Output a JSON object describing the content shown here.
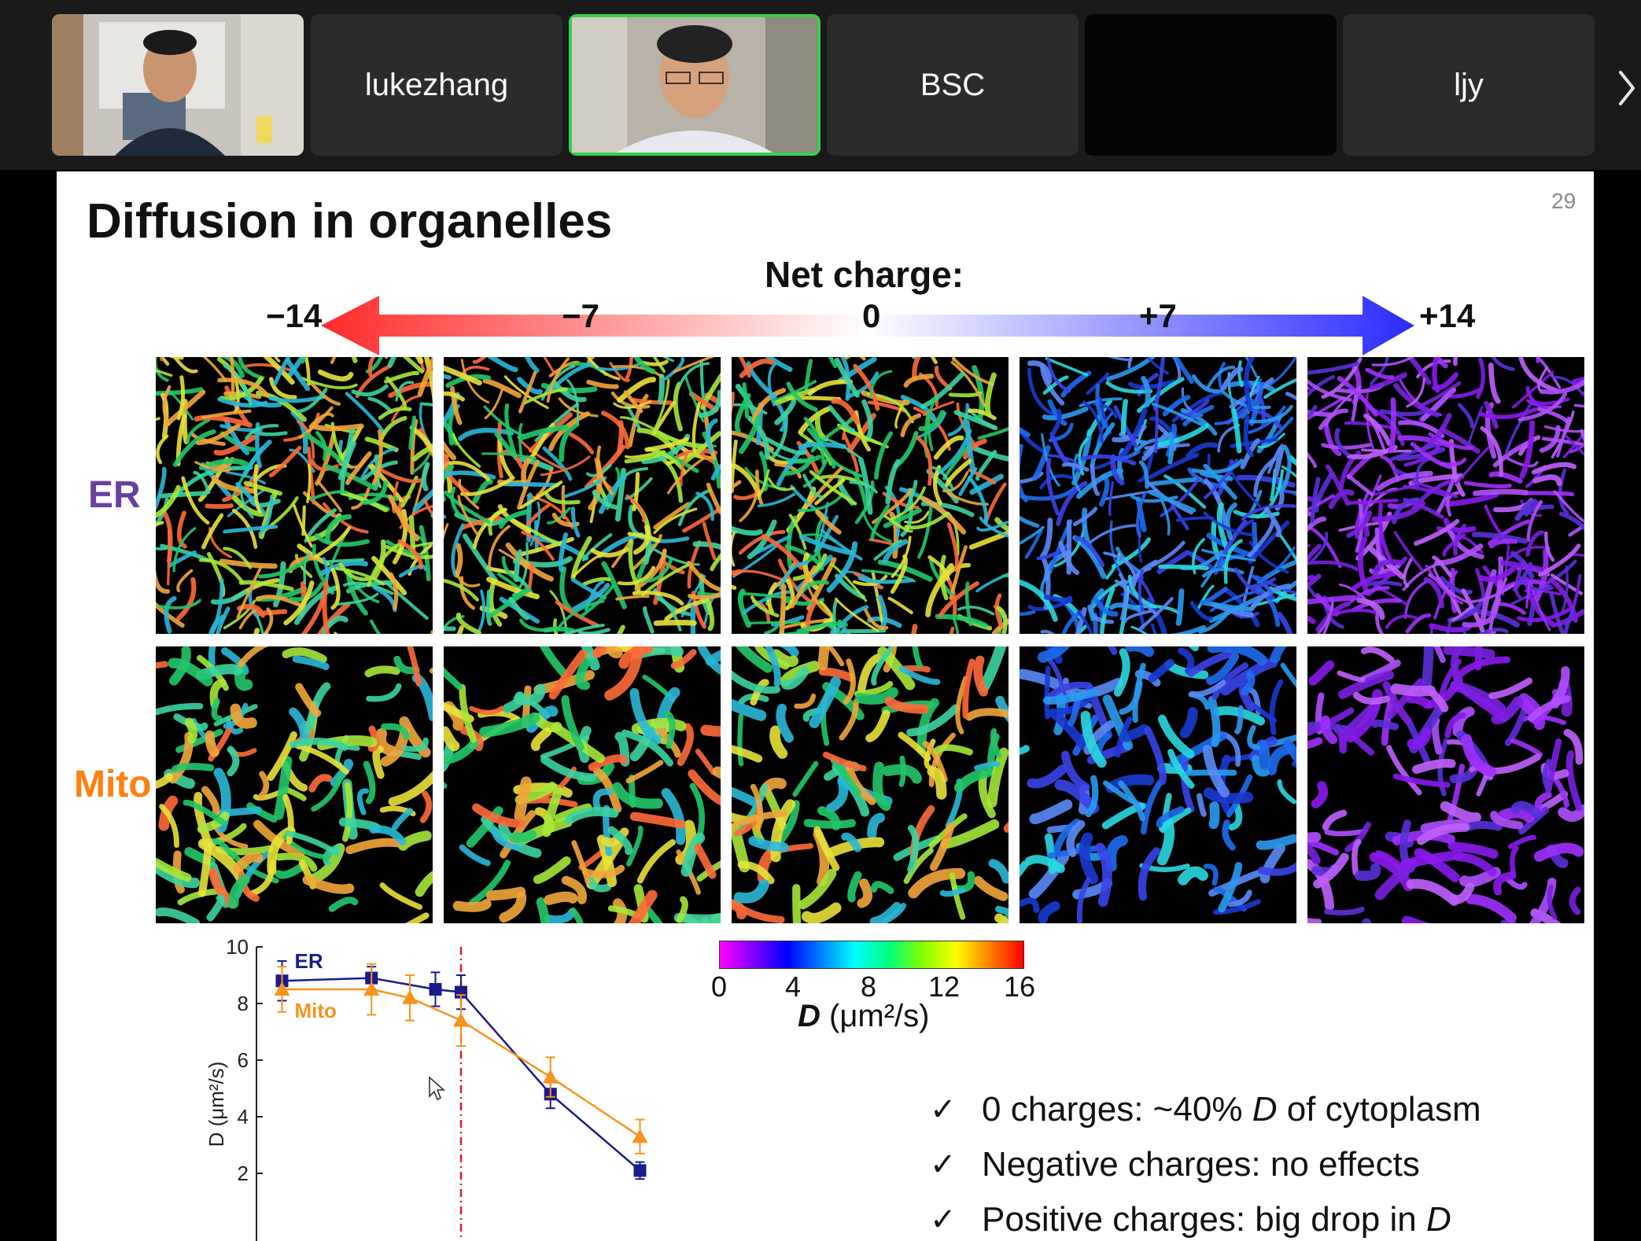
{
  "participants": [
    {
      "name": "",
      "video": true
    },
    {
      "name": "lukezhang",
      "video": false
    },
    {
      "name": "",
      "video": true,
      "active_speaker": true
    },
    {
      "name": "BSC",
      "video": false
    },
    {
      "name": "",
      "video": false
    },
    {
      "name": "ljy",
      "video": false
    }
  ],
  "slide": {
    "title": "Diffusion in organelles",
    "page_number": "29",
    "net_charge_label": "Net charge:",
    "charge_ticks": [
      "−14",
      "−7",
      "0",
      "+7",
      "+14"
    ],
    "row_labels": {
      "er": "ER",
      "mito": "Mito"
    },
    "colors": {
      "er_label": "#6b3fa0",
      "mito_label": "#ff7f0e",
      "er_series": "#1a1a8c",
      "mito_series": "#f7931e",
      "arrow_neg": "#ff2a2a",
      "arrow_pos": "#2a2aff",
      "active_border": "#35d04a"
    },
    "colorbar": {
      "ticks": [
        "0",
        "4",
        "8",
        "12",
        "16"
      ],
      "title_symbol": "D",
      "title_unit": " (μm²/s)"
    },
    "bullets": [
      {
        "check": "✓",
        "pre": "0 charges: ~40% ",
        "em": "D",
        "post": " of cytoplasm"
      },
      {
        "check": "✓",
        "pre": "Negative charges: no effects",
        "em": "",
        "post": ""
      },
      {
        "check": "✓",
        "pre": "Positive charges: big drop in ",
        "em": "D",
        "post": ""
      }
    ]
  },
  "chart_data": {
    "type": "line",
    "ylabel": "D (μm²/s)",
    "ylim": [
      0,
      10
    ],
    "yticks": [
      "2",
      "4",
      "6",
      "8",
      "10"
    ],
    "x": [
      -14,
      -7,
      -4,
      -2,
      0,
      7,
      14
    ],
    "series": [
      {
        "name": "ER",
        "values": [
          8.8,
          8.9,
          null,
          8.5,
          8.4,
          4.8,
          2.1
        ],
        "err": [
          0.7,
          0.4,
          null,
          0.6,
          0.6,
          0.5,
          0.3
        ]
      },
      {
        "name": "Mito",
        "values": [
          8.5,
          8.5,
          8.2,
          null,
          7.4,
          5.4,
          3.3
        ],
        "err": [
          0.8,
          0.9,
          0.8,
          null,
          0.9,
          0.7,
          0.6
        ]
      }
    ],
    "reference_line_x": 0
  }
}
